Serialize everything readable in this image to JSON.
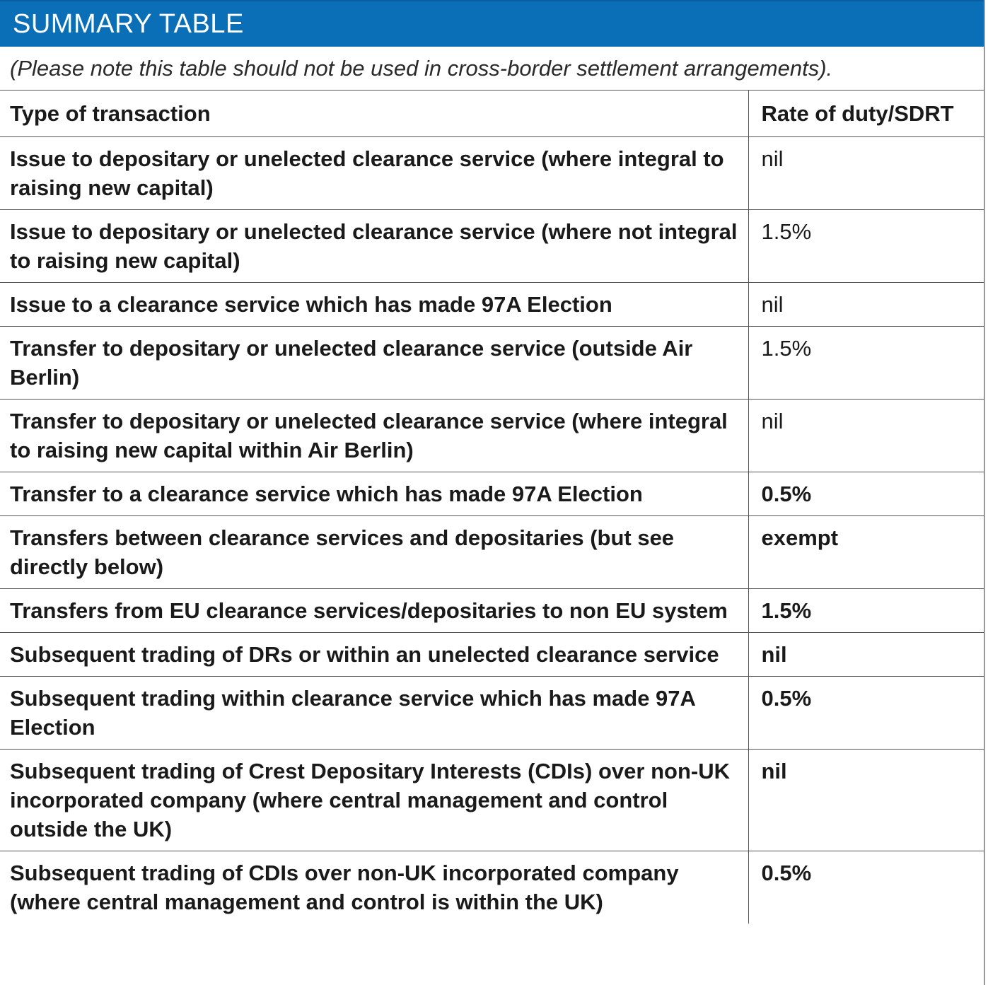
{
  "title": "SUMMARY TABLE",
  "note": "(Please note this table should not be used in cross-border settlement arrangements).",
  "table": {
    "headers": [
      "Type of transaction",
      "Rate of duty/SDRT"
    ],
    "rows": [
      {
        "type": "Issue to depositary or unelected clearance service (where integral to raising new capital)",
        "rate": "nil"
      },
      {
        "type": "Issue to depositary or unelected clearance service (where not integral to raising new capital)",
        "rate": "1.5%"
      },
      {
        "type": "Issue to a clearance service which has made 97A Election",
        "rate": "nil"
      },
      {
        "type": "Transfer to depositary or unelected clearance service (outside Air Berlin)",
        "rate": "1.5%"
      },
      {
        "type": "Transfer to depositary or unelected clearance service (where integral to raising new capital within Air Berlin)",
        "rate": "nil"
      },
      {
        "type": "Transfer to a clearance service which has made 97A Election",
        "rate": "0.5%"
      },
      {
        "type": "Transfers between clearance services and depositaries (but see directly below)",
        "rate": "exempt"
      },
      {
        "type": "Transfers from EU clearance services/depositaries to non EU system",
        "rate": "1.5%"
      },
      {
        "type": "Subsequent trading of DRs or within an unelected clearance service",
        "rate": "nil"
      },
      {
        "type": "Subsequent trading within clearance service which has made 97A Election",
        "rate": "0.5%"
      },
      {
        "type": "Subsequent trading of Crest Depositary Interests (CDIs) over non-UK incorporated company (where central management and control outside the UK)",
        "rate": "nil"
      },
      {
        "type": "Subsequent trading of CDIs over non-UK incorporated company (where central management and control is within the UK)",
        "rate": "0.5%"
      }
    ]
  }
}
